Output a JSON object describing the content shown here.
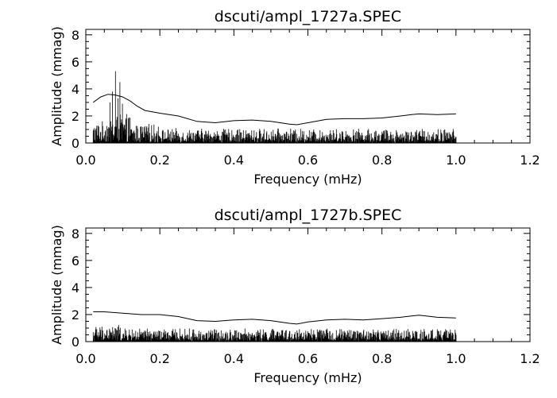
{
  "figure": {
    "background": "#ffffff",
    "ink": "#000000"
  },
  "chart_data": [
    {
      "type": "line",
      "title": "dscuti/ampl_1727a.SPEC",
      "xlabel": "Frequency (mHz)",
      "ylabel": "Amplitude (mmag)",
      "xlim": [
        0.0,
        1.2
      ],
      "ylim": [
        0,
        8.4
      ],
      "xticks": [
        0.0,
        0.2,
        0.4,
        0.6,
        0.8,
        1.0,
        1.2
      ],
      "xtick_labels": [
        "0.0",
        "0.2",
        "0.4",
        "0.6",
        "0.8",
        "1.0",
        "1.2"
      ],
      "yticks": [
        0,
        2,
        4,
        6,
        8
      ],
      "ytick_labels": [
        "0",
        "2",
        "4",
        "6",
        "8"
      ],
      "grid": false,
      "series": [
        {
          "style": "spectrum",
          "range": [
            0.02,
            1.0
          ],
          "peaks": [
            {
              "x": 0.065,
              "y": 3.0
            },
            {
              "x": 0.072,
              "y": 3.8
            },
            {
              "x": 0.08,
              "y": 5.3
            },
            {
              "x": 0.087,
              "y": 3.3
            },
            {
              "x": 0.092,
              "y": 4.5
            },
            {
              "x": 0.099,
              "y": 2.9
            }
          ]
        },
        {
          "style": "threshold",
          "x": [
            0.02,
            0.04,
            0.06,
            0.08,
            0.1,
            0.12,
            0.14,
            0.16,
            0.2,
            0.25,
            0.3,
            0.35,
            0.4,
            0.45,
            0.5,
            0.55,
            0.57,
            0.6,
            0.65,
            0.7,
            0.75,
            0.8,
            0.85,
            0.88,
            0.9,
            0.95,
            1.0
          ],
          "y": [
            3.0,
            3.4,
            3.6,
            3.55,
            3.4,
            3.1,
            2.7,
            2.4,
            2.2,
            2.0,
            1.6,
            1.5,
            1.65,
            1.7,
            1.6,
            1.4,
            1.35,
            1.5,
            1.75,
            1.8,
            1.8,
            1.85,
            2.0,
            2.1,
            2.15,
            2.1,
            2.15
          ]
        }
      ]
    },
    {
      "type": "line",
      "title": "dscuti/ampl_1727b.SPEC",
      "xlabel": "Frequency (mHz)",
      "ylabel": "Amplitude (mmag)",
      "xlim": [
        0.0,
        1.2
      ],
      "ylim": [
        0,
        8.4
      ],
      "xticks": [
        0.0,
        0.2,
        0.4,
        0.6,
        0.8,
        1.0,
        1.2
      ],
      "xtick_labels": [
        "0.0",
        "0.2",
        "0.4",
        "0.6",
        "0.8",
        "1.0",
        "1.2"
      ],
      "yticks": [
        0,
        2,
        4,
        6,
        8
      ],
      "ytick_labels": [
        "0",
        "2",
        "4",
        "6",
        "8"
      ],
      "grid": false,
      "series": [
        {
          "style": "spectrum",
          "range": [
            0.02,
            1.0
          ],
          "peaks": []
        },
        {
          "style": "threshold",
          "x": [
            0.02,
            0.05,
            0.1,
            0.15,
            0.2,
            0.25,
            0.3,
            0.35,
            0.4,
            0.45,
            0.5,
            0.55,
            0.57,
            0.6,
            0.65,
            0.7,
            0.75,
            0.8,
            0.85,
            0.88,
            0.9,
            0.95,
            1.0
          ],
          "y": [
            2.2,
            2.2,
            2.1,
            2.0,
            2.0,
            1.85,
            1.55,
            1.5,
            1.6,
            1.65,
            1.55,
            1.35,
            1.3,
            1.45,
            1.6,
            1.65,
            1.6,
            1.7,
            1.8,
            1.9,
            1.95,
            1.8,
            1.75
          ]
        }
      ]
    }
  ]
}
